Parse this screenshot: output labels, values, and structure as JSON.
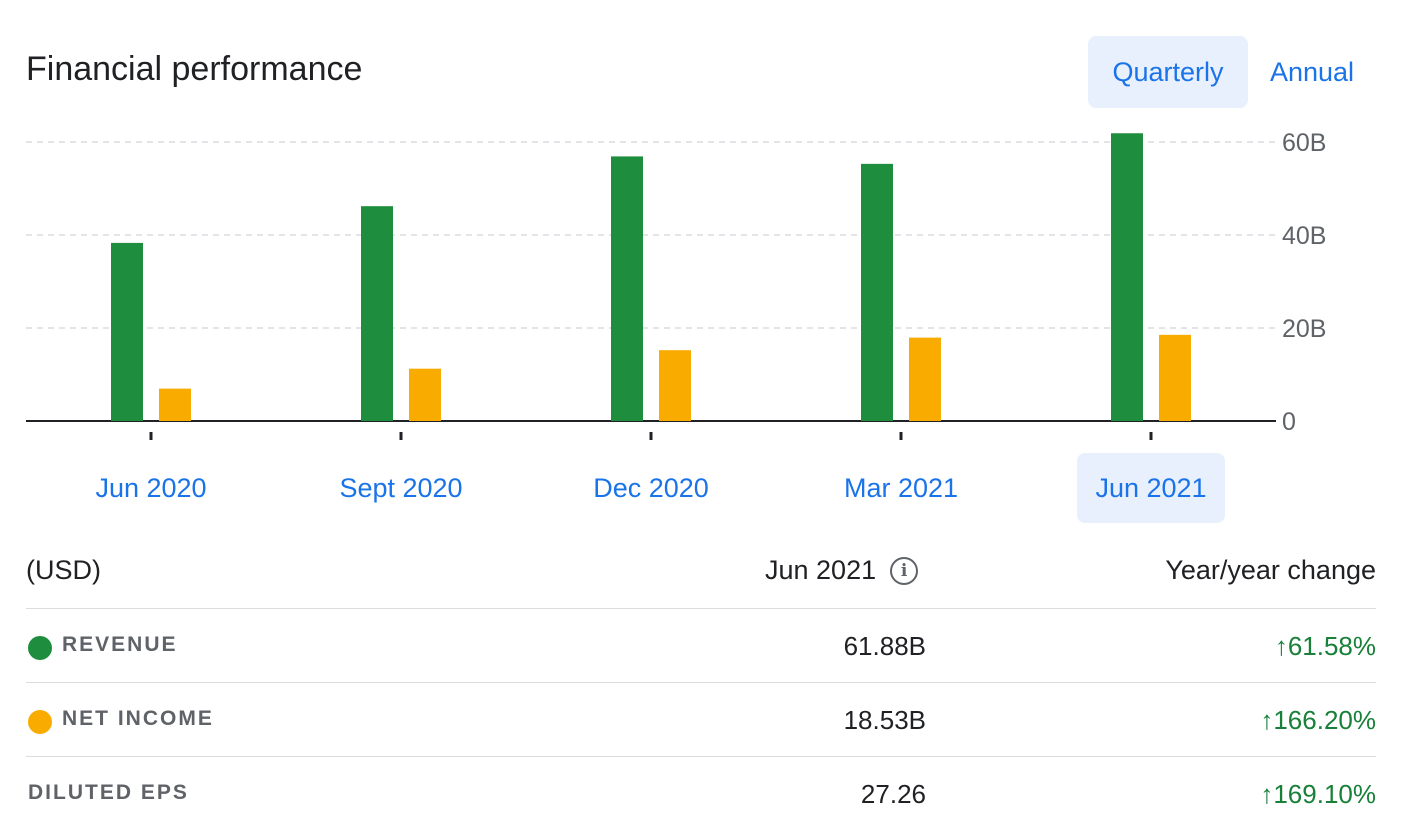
{
  "header": {
    "title": "Financial performance",
    "quarterly_label": "Quarterly",
    "annual_label": "Annual"
  },
  "colors": {
    "revenue": "#1e8e3e",
    "net_income": "#f9ab00",
    "accent": "#1a73e8",
    "positive": "#188038"
  },
  "chart_data": {
    "type": "bar",
    "categories": [
      "Jun 2020",
      "Sept 2020",
      "Dec 2020",
      "Mar 2021",
      "Jun 2021"
    ],
    "series": [
      {
        "name": "Revenue",
        "values": [
          38.3,
          46.2,
          56.9,
          55.3,
          61.88
        ]
      },
      {
        "name": "Net income",
        "values": [
          6.96,
          11.25,
          15.23,
          17.93,
          18.53
        ]
      }
    ],
    "y_ticks": [
      "60B",
      "40B",
      "20B",
      "0"
    ],
    "y_tick_values": [
      60,
      40,
      20,
      0
    ],
    "ylim": [
      0,
      60
    ],
    "grid": true,
    "selected_category": "Jun 2021"
  },
  "table": {
    "currency": "(USD)",
    "period": "Jun 2021",
    "change_header": "Year/year change",
    "rows": [
      {
        "label": "REVENUE",
        "value": "61.88B",
        "change": "↑61.58%"
      },
      {
        "label": "NET INCOME",
        "value": "18.53B",
        "change": "↑166.20%"
      },
      {
        "label": "DILUTED EPS",
        "value": "27.26",
        "change": "↑169.10%"
      }
    ]
  },
  "icons": {
    "info": "info-icon",
    "up_arrow": "arrow-up-icon"
  }
}
